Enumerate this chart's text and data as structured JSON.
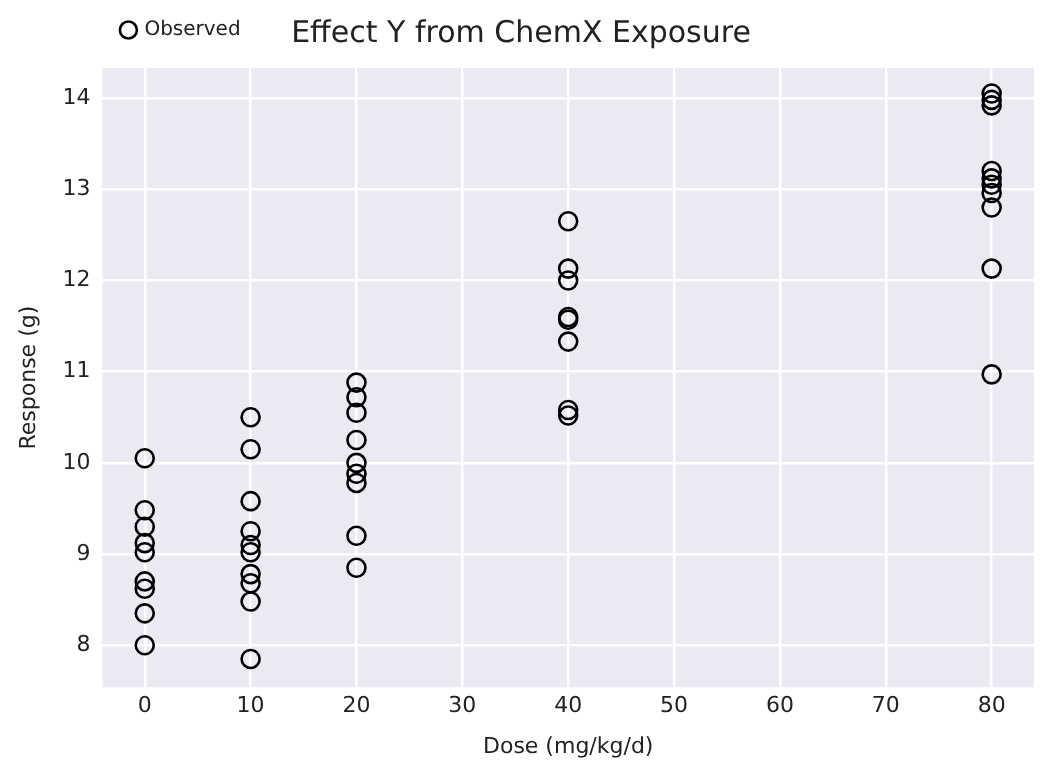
{
  "chart_data": {
    "type": "scatter",
    "title": "Effect Y from ChemX Exposure",
    "xlabel": "Dose (mg/kg/d)",
    "ylabel": "Response (g)",
    "xlim": [
      -4,
      84
    ],
    "ylim": [
      7.54,
      14.33
    ],
    "xticks": [
      0,
      10,
      20,
      30,
      40,
      50,
      60,
      70,
      80
    ],
    "yticks": [
      8,
      9,
      10,
      11,
      12,
      13,
      14
    ],
    "grid": true,
    "legend": "top left",
    "marker": "circle",
    "series": [
      {
        "name": "Observed",
        "color": "#000000",
        "x": [
          0,
          0,
          0,
          0,
          0,
          0,
          0,
          0,
          0,
          10,
          10,
          10,
          10,
          10,
          10,
          10,
          10,
          10,
          10,
          20,
          20,
          20,
          20,
          20,
          20,
          20,
          20,
          20,
          40,
          40,
          40,
          40,
          40,
          40,
          40,
          40,
          80,
          80,
          80,
          80,
          80,
          80,
          80,
          80,
          80,
          80
        ],
        "values": [
          10.05,
          9.48,
          9.3,
          9.12,
          9.02,
          8.7,
          8.62,
          8.35,
          8.0,
          10.5,
          10.15,
          9.58,
          9.25,
          9.1,
          9.02,
          8.78,
          8.68,
          8.48,
          7.85,
          10.88,
          10.72,
          10.55,
          10.25,
          10.0,
          9.88,
          9.78,
          9.2,
          8.85,
          12.65,
          12.13,
          12.0,
          11.6,
          11.57,
          11.33,
          10.58,
          10.52,
          14.05,
          13.98,
          13.92,
          13.2,
          13.12,
          13.05,
          12.96,
          12.8,
          12.13,
          10.97
        ]
      }
    ]
  }
}
